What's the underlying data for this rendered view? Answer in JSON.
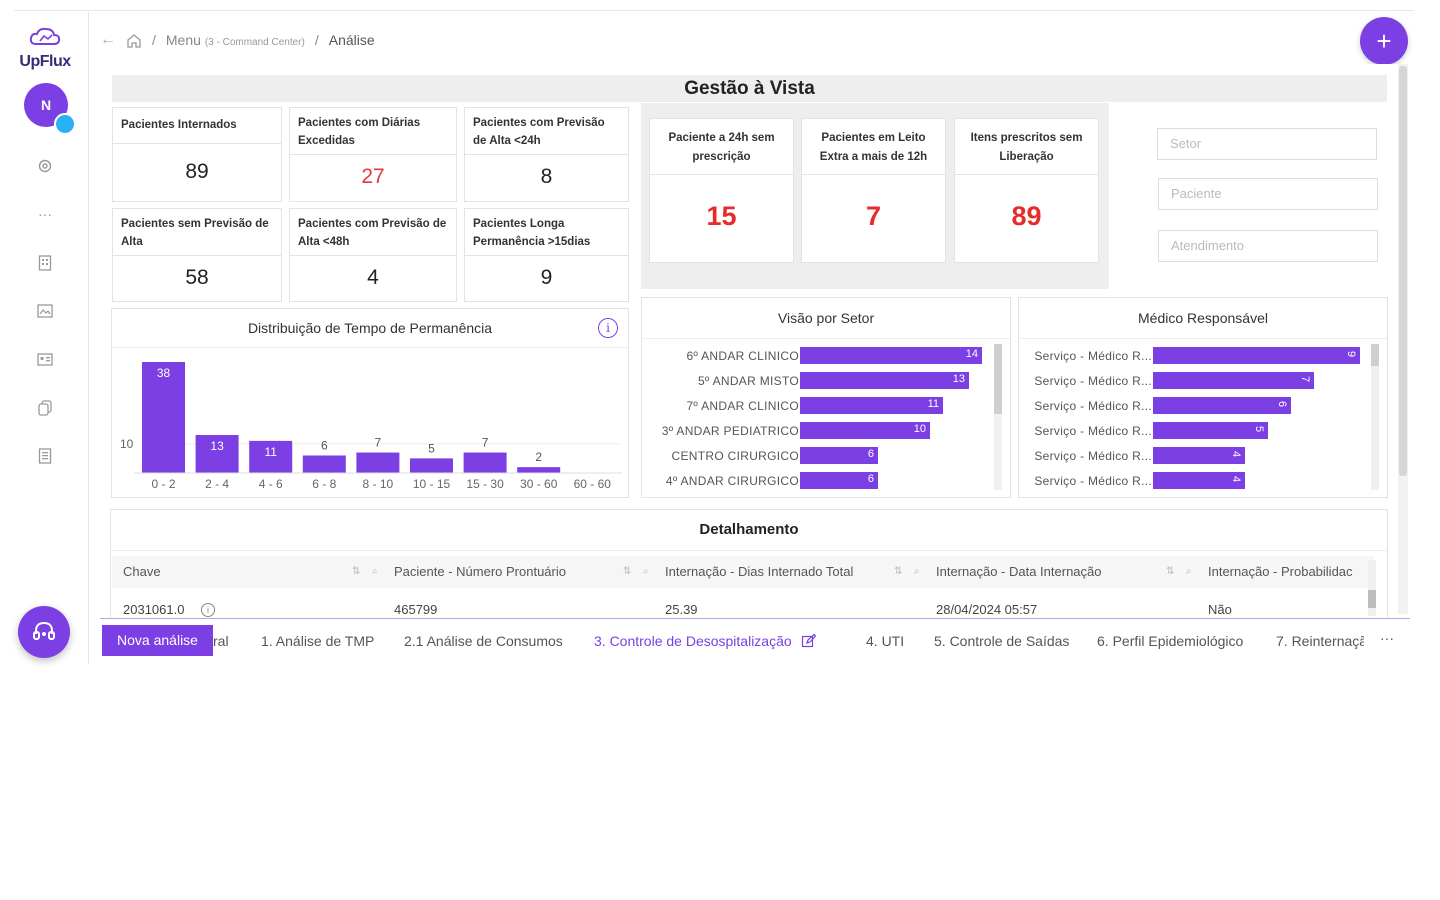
{
  "app": {
    "name": "UpFlux",
    "user_initial": "N"
  },
  "breadcrumb": {
    "menu": "Menu",
    "menu_sub": "(3 - Command Center)",
    "current": "Análise"
  },
  "dashboard": {
    "title": "Gestão à Vista",
    "kpis": [
      {
        "label": "Pacientes Internados",
        "value": "89",
        "alert": false
      },
      {
        "label": "Pacientes com Diárias Excedidas",
        "value": "27",
        "alert": true
      },
      {
        "label": "Pacientes com Previsão de Alta <24h",
        "value": "8",
        "alert": false
      },
      {
        "label": "Pacientes sem Previsão de Alta",
        "value": "58",
        "alert": false
      },
      {
        "label": "Pacientes com Previsão de Alta <48h",
        "value": "4",
        "alert": false
      },
      {
        "label": "Pacientes Longa Permanência >15dias",
        "value": "9",
        "alert": false
      }
    ],
    "kpis_highlight": [
      {
        "label": "Paciente a 24h sem prescrição",
        "value": "15"
      },
      {
        "label": "Pacientes em Leito Extra a mais de 12h",
        "value": "7"
      },
      {
        "label": "Itens prescritos sem Liberação",
        "value": "89"
      }
    ],
    "filters": [
      {
        "placeholder": "Setor"
      },
      {
        "placeholder": "Paciente"
      },
      {
        "placeholder": "Atendimento"
      }
    ]
  },
  "chart_data": [
    {
      "type": "bar",
      "title": "Distribuição de Tempo de Permanência",
      "categories": [
        "0 - 2",
        "2 - 4",
        "4 - 6",
        "6 - 8",
        "8 - 10",
        "10 - 15",
        "15 - 30",
        "30 - 60",
        "60 - 60"
      ],
      "values": [
        38,
        13,
        11,
        6,
        7,
        5,
        7,
        2,
        0
      ],
      "ytick": "10",
      "color": "#7b3fe4"
    },
    {
      "type": "bar",
      "orientation": "horizontal",
      "title": "Visão por Setor",
      "categories": [
        "6º ANDAR CLINICO",
        "5º ANDAR MISTO",
        "7º ANDAR CLINICO",
        "3º ANDAR PEDIATRICO",
        "CENTRO CIRURGICO",
        "4º ANDAR CIRURGICO"
      ],
      "values": [
        14,
        13,
        11,
        10,
        6,
        6
      ],
      "color": "#7b3fe4"
    },
    {
      "type": "bar",
      "orientation": "horizontal",
      "title": "Médico Responsável",
      "categories": [
        "Serviço - Médico R...",
        "Serviço - Médico R...",
        "Serviço - Médico R...",
        "Serviço - Médico R...",
        "Serviço - Médico R...",
        "Serviço - Médico R..."
      ],
      "values": [
        9,
        7,
        6,
        5,
        4,
        4
      ],
      "color": "#7b3fe4"
    }
  ],
  "detail": {
    "title": "Detalhamento",
    "columns": [
      "Chave",
      "Paciente - Número Prontuário",
      "Internação - Dias Internado Total",
      "Internação - Data Internação",
      "Internação - Probabilidac"
    ],
    "rows": [
      [
        "2031061.0",
        "465799",
        "25.39",
        "28/04/2024 05:57",
        "Não"
      ]
    ]
  },
  "tabs": {
    "new_label": "Nova análise",
    "items": [
      {
        "label": "ral",
        "active": false
      },
      {
        "label": "1. Análise de TMP",
        "active": false
      },
      {
        "label": "2.1 Análise de Consumos",
        "active": false
      },
      {
        "label": "3. Controle de Desospitalização",
        "active": true
      },
      {
        "label": "4. UTI",
        "active": false
      },
      {
        "label": "5. Controle de Saídas",
        "active": false
      },
      {
        "label": "6. Perfil Epidemiológico",
        "active": false
      },
      {
        "label": "7. Reinternaçã",
        "active": false
      }
    ],
    "more": "···"
  },
  "colors": {
    "accent": "#7b3fe4",
    "alert": "#e03b3b",
    "badge": "#2ab0f5"
  }
}
